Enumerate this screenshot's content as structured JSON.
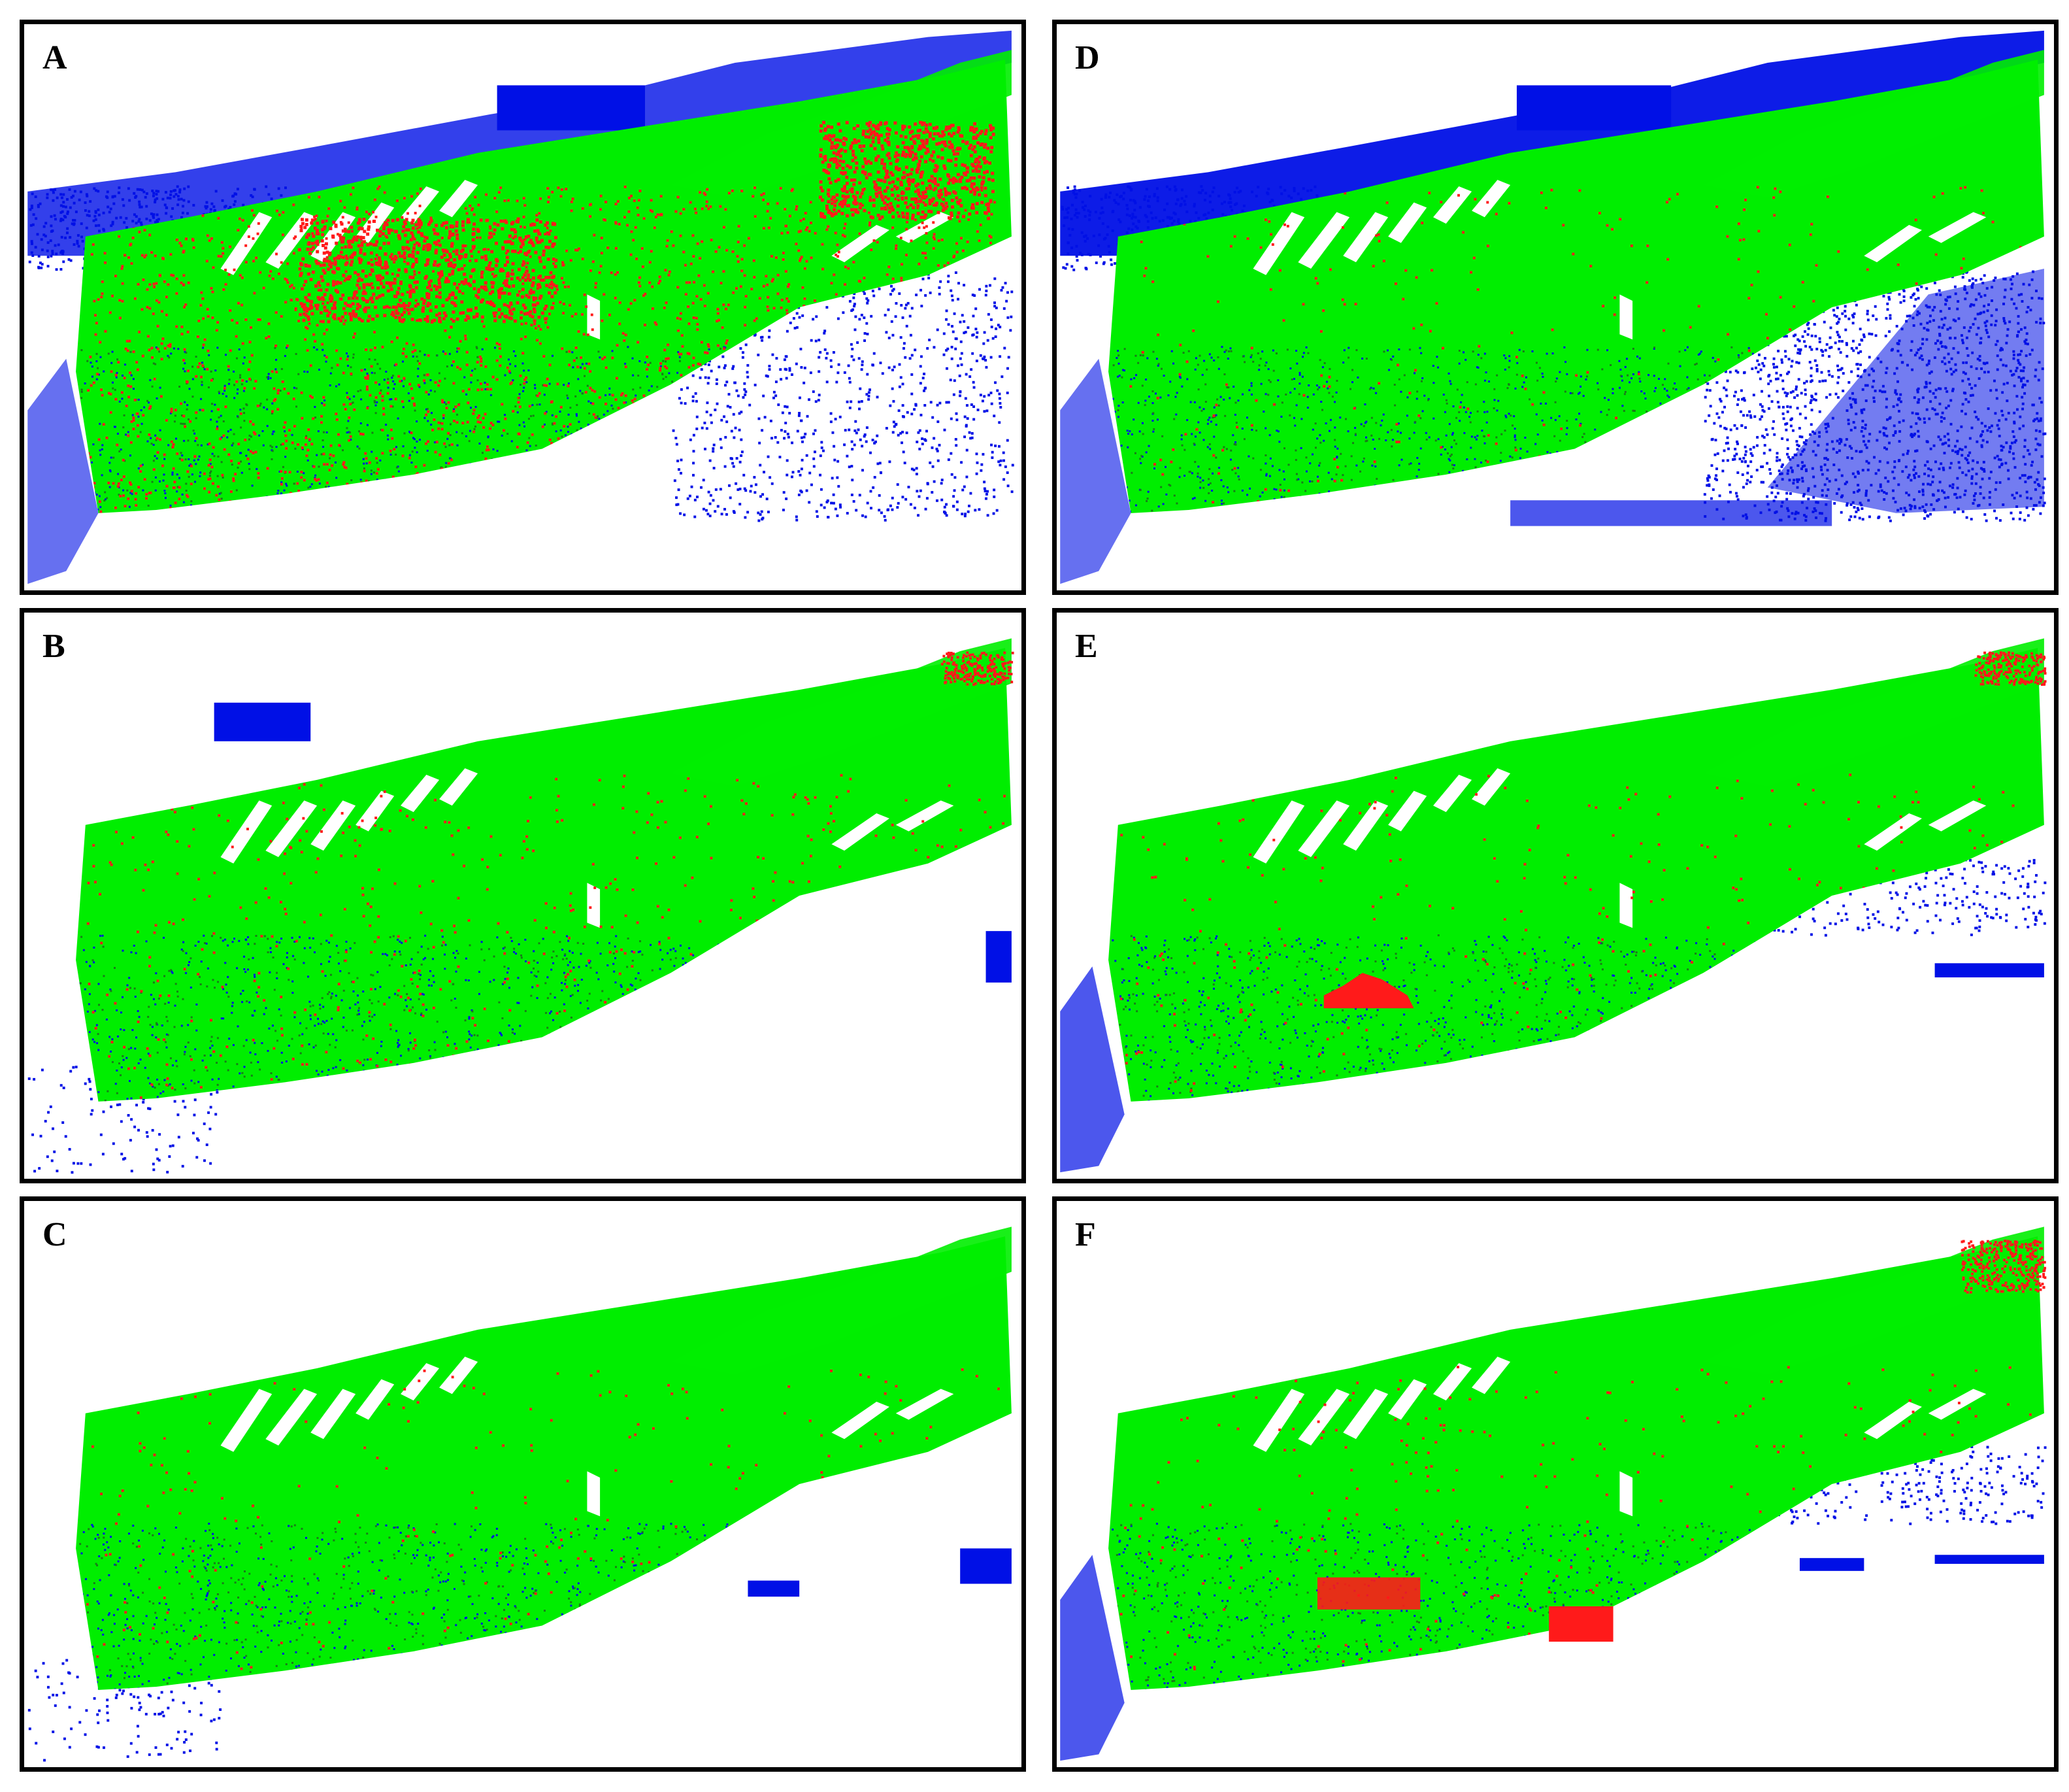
{
  "colors": {
    "stable": "#00ee00",
    "change": "#ff1a1a",
    "missing": "#0010e6",
    "frame": "#000000"
  },
  "panels": [
    {
      "id": "A",
      "label": "A",
      "missing_level": "high",
      "change_level": "high"
    },
    {
      "id": "B",
      "label": "B",
      "missing_level": "low",
      "change_level": "medium"
    },
    {
      "id": "C",
      "label": "C",
      "missing_level": "low",
      "change_level": "low"
    },
    {
      "id": "D",
      "label": "D",
      "missing_level": "very-high",
      "change_level": "low"
    },
    {
      "id": "E",
      "label": "E",
      "missing_level": "medium",
      "change_level": "blob"
    },
    {
      "id": "F",
      "label": "F",
      "missing_level": "medium",
      "change_level": "blobs"
    }
  ]
}
